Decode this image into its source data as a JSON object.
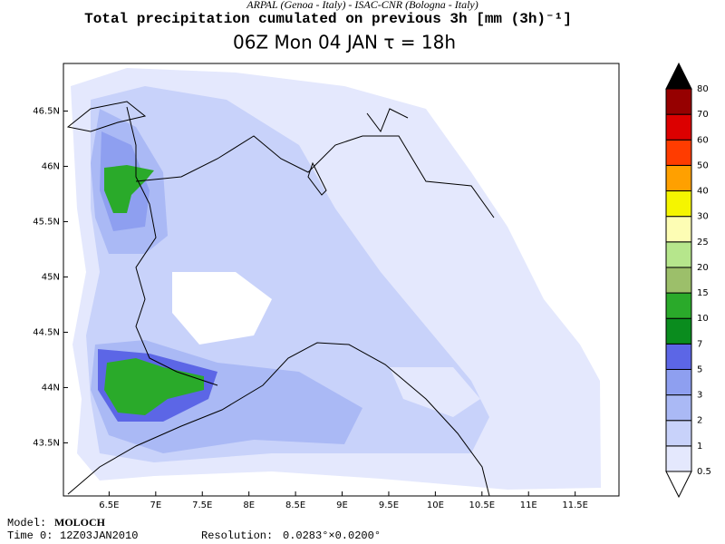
{
  "header": {
    "credit": "ARPAL (Genoa - Italy)  -  ISAC-CNR (Bologna - Italy)",
    "title": "Total precipitation cumulated on previous 3h [mm (3h)⁻¹]",
    "subtitle": "06Z Mon 04 JAN  τ = 18h"
  },
  "map": {
    "lonlim": [
      6.01,
      11.97
    ],
    "latlim": [
      43.02,
      46.93
    ],
    "lon_ticks": [
      {
        "value": 6.5,
        "label": "6.5E"
      },
      {
        "value": 7,
        "label": "7E"
      },
      {
        "value": 7.5,
        "label": "7.5E"
      },
      {
        "value": 8,
        "label": "8E"
      },
      {
        "value": 8.5,
        "label": "8.5E"
      },
      {
        "value": 9,
        "label": "9E"
      },
      {
        "value": 9.5,
        "label": "9.5E"
      },
      {
        "value": 10,
        "label": "10E"
      },
      {
        "value": 10.5,
        "label": "10.5E"
      },
      {
        "value": 11,
        "label": "11E"
      },
      {
        "value": 11.5,
        "label": "11.5E"
      }
    ],
    "lat_ticks": [
      {
        "value": 43.5,
        "label": "43.5N"
      },
      {
        "value": 44,
        "label": "44N"
      },
      {
        "value": 44.5,
        "label": "44.5N"
      },
      {
        "value": 45,
        "label": "45N"
      },
      {
        "value": 45.5,
        "label": "45.5N"
      },
      {
        "value": 46,
        "label": "46N"
      },
      {
        "value": 46.5,
        "label": "46.5N"
      }
    ]
  },
  "colorbar": {
    "levels": [
      0.5,
      1,
      2,
      3,
      5,
      7,
      10,
      15,
      20,
      25,
      30,
      40,
      50,
      60,
      70,
      80
    ],
    "colors": [
      "#ffffff",
      "#e4e8fd",
      "#c8d2fa",
      "#aab9f5",
      "#8e9ff0",
      "#5c66e6",
      "#0a8c1e",
      "#2aaa2a",
      "#9cbf6a",
      "#b6e68c",
      "#fdfdb4",
      "#f5f500",
      "#ffa000",
      "#ff3c00",
      "#dc0000",
      "#960000",
      "#000000"
    ]
  },
  "footer": {
    "model_label": "Model:",
    "model": "MOLOCH",
    "time_label": "Time 0:",
    "time": "12Z03JAN2010",
    "resolution_label": "Resolution:",
    "resolution": "0.0283°×0.0200°"
  }
}
